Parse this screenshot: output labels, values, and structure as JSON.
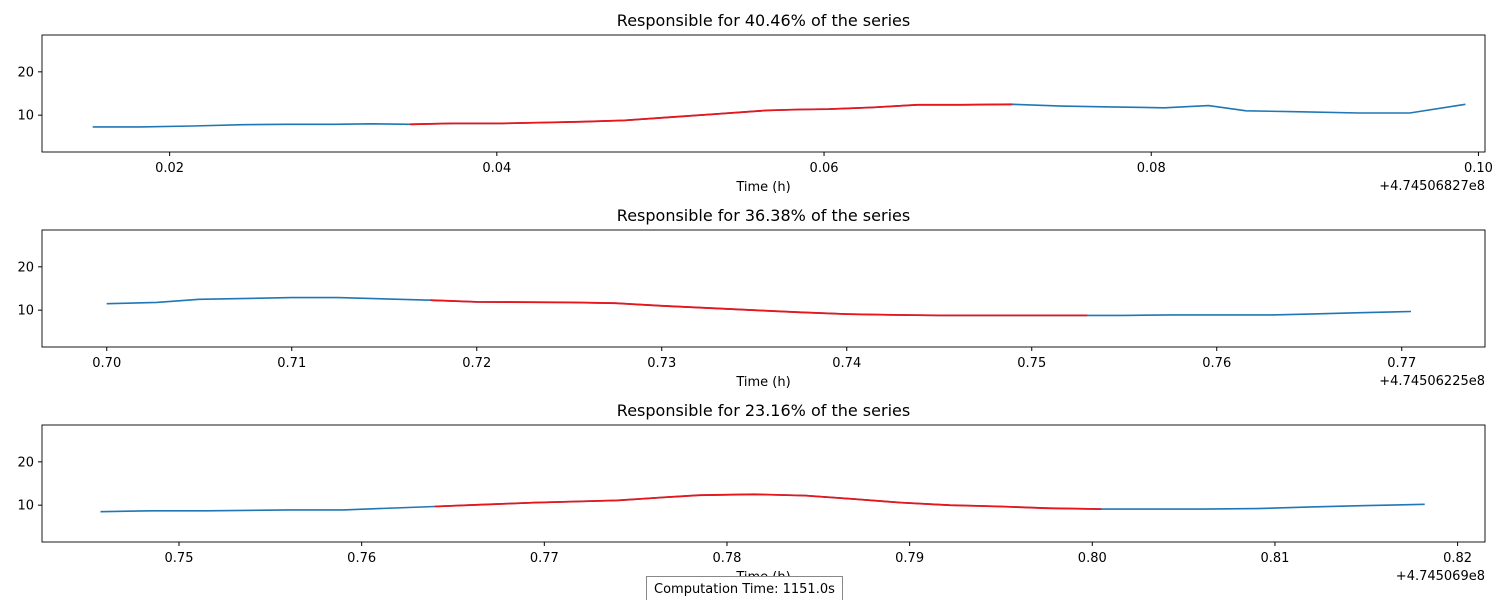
{
  "colors": {
    "base_line": "#1f77b4",
    "highlight_line": "#e8151b",
    "axes": "#000000"
  },
  "footer": {
    "computation_time": "Computation Time: 1151.0s"
  },
  "chart_data": [
    {
      "type": "line",
      "title": "Responsible for 40.46% of the series",
      "xlabel": "Time (h)",
      "offset_label": "+4.74506827e8",
      "xlim": [
        0.0122,
        0.1004
      ],
      "ylim": [
        1.5,
        28.5
      ],
      "xticks": [
        0.02,
        0.04,
        0.06,
        0.08,
        0.1
      ],
      "xtick_labels": [
        "0.02",
        "0.04",
        "0.06",
        "0.08",
        "0.10"
      ],
      "yticks": [
        10,
        20
      ],
      "ytick_labels": [
        "10",
        "20"
      ],
      "x": [
        0.0153,
        0.0182,
        0.0214,
        0.0245,
        0.0271,
        0.0301,
        0.0323,
        0.0347,
        0.0373,
        0.0403,
        0.043,
        0.0453,
        0.0478,
        0.0505,
        0.0535,
        0.0565,
        0.0585,
        0.0603,
        0.063,
        0.0657,
        0.0684,
        0.0715,
        0.0745,
        0.0775,
        0.0808,
        0.0835,
        0.0858,
        0.0888,
        0.0927,
        0.0958,
        0.0992
      ],
      "y": [
        7.3,
        7.3,
        7.5,
        7.8,
        7.9,
        7.9,
        8.0,
        7.9,
        8.1,
        8.1,
        8.3,
        8.5,
        8.8,
        9.5,
        10.3,
        11.1,
        11.3,
        11.4,
        11.8,
        12.4,
        12.4,
        12.5,
        12.1,
        11.9,
        11.7,
        12.2,
        11.0,
        10.8,
        10.5,
        10.5,
        12.5
      ],
      "highlight_range": [
        0.0347,
        0.0715
      ]
    },
    {
      "type": "line",
      "title": "Responsible for 36.38% of the series",
      "xlabel": "Time (h)",
      "offset_label": "+4.74506225e8",
      "xlim": [
        0.6965,
        0.7745
      ],
      "ylim": [
        1.5,
        28.5
      ],
      "xticks": [
        0.7,
        0.71,
        0.72,
        0.73,
        0.74,
        0.75,
        0.76,
        0.77
      ],
      "xtick_labels": [
        "0.70",
        "0.71",
        "0.72",
        "0.73",
        "0.74",
        "0.75",
        "0.76",
        "0.77"
      ],
      "yticks": [
        10,
        20
      ],
      "ytick_labels": [
        "10",
        "20"
      ],
      "x": [
        0.7,
        0.7027,
        0.705,
        0.71,
        0.7125,
        0.7175,
        0.72,
        0.725,
        0.7275,
        0.73,
        0.735,
        0.7375,
        0.74,
        0.7425,
        0.745,
        0.75,
        0.753,
        0.755,
        0.7575,
        0.76,
        0.763,
        0.765,
        0.7675,
        0.7705
      ],
      "y": [
        11.5,
        11.8,
        12.5,
        12.9,
        12.9,
        12.3,
        11.9,
        11.8,
        11.6,
        11.0,
        10.0,
        9.5,
        9.1,
        8.9,
        8.8,
        8.8,
        8.8,
        8.8,
        8.9,
        8.9,
        8.9,
        9.1,
        9.4,
        9.7
      ],
      "highlight_range": [
        0.7175,
        0.753
      ]
    },
    {
      "type": "line",
      "title": "Responsible for 23.16% of the series",
      "xlabel": "Time (h)",
      "offset_label": "+4.745069e8",
      "xlim": [
        0.7425,
        0.8215
      ],
      "ylim": [
        1.5,
        28.5
      ],
      "xticks": [
        0.75,
        0.76,
        0.77,
        0.78,
        0.79,
        0.8,
        0.81,
        0.82
      ],
      "xtick_labels": [
        "0.75",
        "0.76",
        "0.77",
        "0.78",
        "0.79",
        "0.80",
        "0.81",
        "0.82"
      ],
      "yticks": [
        10,
        20
      ],
      "ytick_labels": [
        "10",
        "20"
      ],
      "x": [
        0.7457,
        0.7485,
        0.7515,
        0.756,
        0.759,
        0.764,
        0.7665,
        0.7695,
        0.774,
        0.7765,
        0.7785,
        0.7815,
        0.7843,
        0.787,
        0.7895,
        0.7922,
        0.795,
        0.7975,
        0.8005,
        0.803,
        0.806,
        0.809,
        0.812,
        0.815,
        0.8182
      ],
      "y": [
        8.5,
        8.7,
        8.7,
        8.9,
        8.9,
        9.7,
        10.1,
        10.6,
        11.1,
        11.8,
        12.3,
        12.5,
        12.2,
        11.4,
        10.6,
        10.0,
        9.7,
        9.3,
        9.1,
        9.1,
        9.1,
        9.2,
        9.6,
        9.9,
        10.2
      ],
      "highlight_range": [
        0.764,
        0.8005
      ]
    }
  ]
}
